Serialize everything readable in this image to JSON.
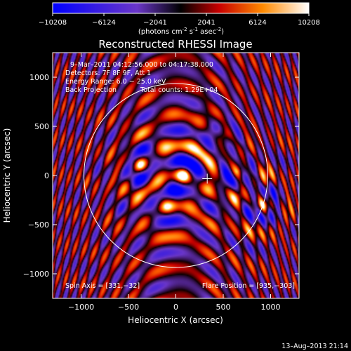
{
  "chart_data": {
    "type": "heatmap",
    "title": "Reconstructed RHESSI Image",
    "xlabel": "Heliocentric X (arcsec)",
    "ylabel": "Heliocentric Y (arcsec)",
    "xlim": [
      -1300,
      1300
    ],
    "ylim": [
      -1250,
      1250
    ],
    "x_ticks": [
      -1000,
      -500,
      0,
      500,
      1000
    ],
    "y_ticks": [
      -1000,
      -500,
      0,
      500,
      1000
    ],
    "x_tick_labels": [
      "−1000",
      "−500",
      "0",
      "500",
      "1000"
    ],
    "y_tick_labels": [
      "−1000",
      "−500",
      "0",
      "500",
      "1000"
    ],
    "colorbar": {
      "range": [
        -10208,
        10208
      ],
      "ticks": [
        -10208,
        -6124,
        -2041,
        2041,
        6124,
        10208
      ],
      "tick_labels": [
        "−10208",
        "−6124",
        "−2041",
        "2041",
        "6124",
        "10208"
      ],
      "unit_base": "(photons cm",
      "unit_exp1": "-2",
      "unit_mid": " s",
      "unit_exp2": "-1",
      "unit_mid2": " asec",
      "unit_exp3": "-2",
      "unit_end": ")"
    },
    "annotations": {
      "time_range": "9–Mar–2011 04:12:56.000 to 04:17:38.000",
      "detectors": "Detectors: 7F 8F 9F, Att 1",
      "energy": "Energy Range: 6.0 − 25.0 keV",
      "method": "Back Projection",
      "counts": "Total counts: 1.29E+04",
      "spin_axis": "Spin Axis = [331,−32]",
      "flare_position": "Flare Position = [935,−303]"
    },
    "solar_limb_radius_arcsec": 970,
    "center_marker": [
      331,
      -32
    ],
    "bright_sources": [
      {
        "x": 80,
        "y": 10,
        "level": 1.0
      },
      {
        "x": -370,
        "y": 110,
        "level": 0.9
      },
      {
        "x": 650,
        "y": 40,
        "level": 0.75
      },
      {
        "x": 920,
        "y": -300,
        "level": 0.85
      },
      {
        "x": 500,
        "y": 400,
        "level": 0.6
      },
      {
        "x": -100,
        "y": -320,
        "level": 0.6
      }
    ],
    "footer_date": "13–Aug–2013 21:14"
  }
}
